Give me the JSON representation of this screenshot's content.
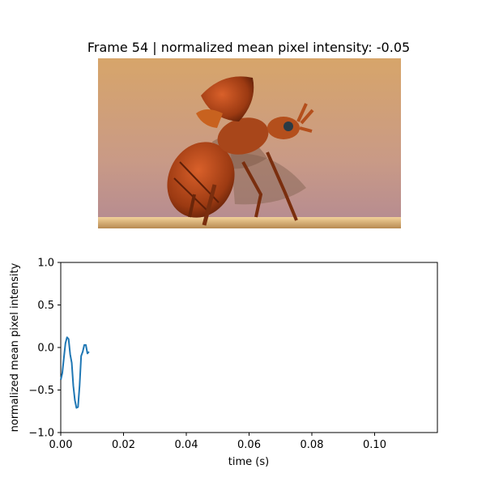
{
  "frame": {
    "title": "Frame 54 | normalized mean pixel intensity: -0.05",
    "image_subject": "beetle-taking-off-photo"
  },
  "chart_data": {
    "type": "line",
    "xlabel": "time (s)",
    "ylabel": "normalized mean pixel intensity",
    "xlim": [
      0,
      0.12
    ],
    "ylim": [
      -1.0,
      1.0
    ],
    "x_ticks": [
      0.0,
      0.02,
      0.04,
      0.06,
      0.08,
      0.1
    ],
    "x_tick_labels": [
      "0.00",
      "0.02",
      "0.04",
      "0.06",
      "0.08",
      "0.10"
    ],
    "y_ticks": [
      -1.0,
      -0.5,
      0.0,
      0.5,
      1.0
    ],
    "y_tick_labels": [
      "−1.0",
      "−0.5",
      "0.0",
      "0.5",
      "1.0"
    ],
    "grid": false,
    "series": [
      {
        "color": "#1f77b4",
        "x": [
          0.0,
          0.0005,
          0.001,
          0.0015,
          0.002,
          0.0025,
          0.003,
          0.0035,
          0.004,
          0.0045,
          0.005,
          0.0055,
          0.006,
          0.0065,
          0.007,
          0.0075,
          0.008,
          0.0085,
          0.009
        ],
        "y": [
          -0.38,
          -0.3,
          -0.12,
          0.05,
          0.12,
          0.1,
          -0.08,
          -0.18,
          -0.45,
          -0.62,
          -0.71,
          -0.7,
          -0.45,
          -0.1,
          -0.05,
          0.03,
          0.03,
          -0.07,
          -0.05
        ]
      }
    ]
  }
}
